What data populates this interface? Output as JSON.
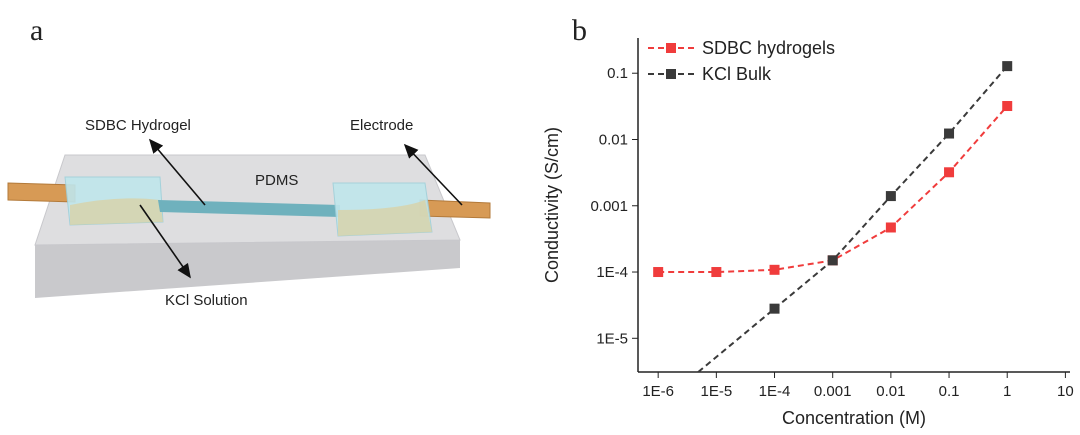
{
  "panel_a": {
    "label": "a",
    "texts": {
      "hydrogel": "SDBC Hydrogel",
      "electrode": "Electrode",
      "pdms": "PDMS",
      "solution": "KCl Solution"
    }
  },
  "chart_data": {
    "type": "line",
    "panel_label": "b",
    "x_label": "Concentration (M)",
    "y_label": "Conductivity (S/cm)",
    "xlog": true,
    "ylog": true,
    "legend": "top-left",
    "xlim": [
      4.5e-07,
      12
    ],
    "ylim": [
      3.1e-06,
      0.34
    ],
    "xticks": [
      {
        "value": 1e-06,
        "label": "1E-6"
      },
      {
        "value": 1e-05,
        "label": "1E-5"
      },
      {
        "value": 0.0001,
        "label": "1E-4"
      },
      0.001,
      0.01,
      0.1,
      1,
      10
    ],
    "yticks": [
      {
        "value": 1e-05,
        "label": "1E-5"
      },
      {
        "value": 0.0001,
        "label": "1E-4"
      },
      0.001,
      0.01,
      0.1
    ],
    "series": [
      {
        "name": "SDBC hydrogels",
        "color": "#f03c3c",
        "x": [
          1e-06,
          1e-05,
          0.0001,
          0.001,
          0.01,
          0.1,
          1
        ],
        "values": [
          0.0001,
          0.0001,
          0.000108,
          0.00015,
          0.00047,
          0.0032,
          0.032
        ]
      },
      {
        "name": "KCl Bulk",
        "color": "#3a3a3a",
        "x": [
          0.0001,
          0.001,
          0.01,
          0.1,
          1
        ],
        "values": [
          2.8e-05,
          0.00015,
          0.0014,
          0.0123,
          0.128
        ]
      }
    ]
  }
}
